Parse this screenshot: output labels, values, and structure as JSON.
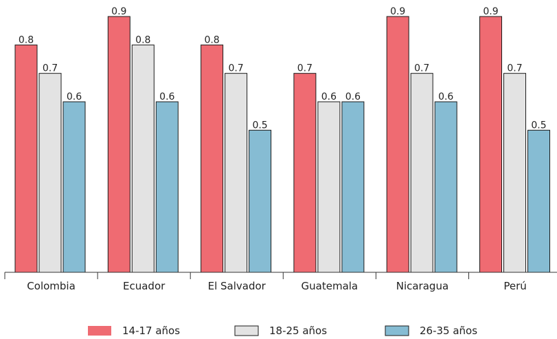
{
  "chart_data": {
    "type": "bar",
    "categories": [
      "Colombia",
      "Ecuador",
      "El Salvador",
      "Guatemala",
      "Nicaragua",
      "Perú"
    ],
    "series": [
      {
        "name": "14-17 años",
        "color": "#ef6b72",
        "values": [
          0.8,
          0.9,
          0.8,
          0.7,
          0.9,
          0.9
        ]
      },
      {
        "name": "18-25 años",
        "color": "#e3e3e3",
        "values": [
          0.7,
          0.8,
          0.7,
          0.6,
          0.7,
          0.7
        ]
      },
      {
        "name": "26-35 años",
        "color": "#86bcd3",
        "values": [
          0.6,
          0.6,
          0.5,
          0.6,
          0.6,
          0.5
        ]
      }
    ],
    "ylim": [
      0,
      0.9
    ],
    "data_labels": true,
    "grid": false,
    "legend_position": "bottom"
  }
}
